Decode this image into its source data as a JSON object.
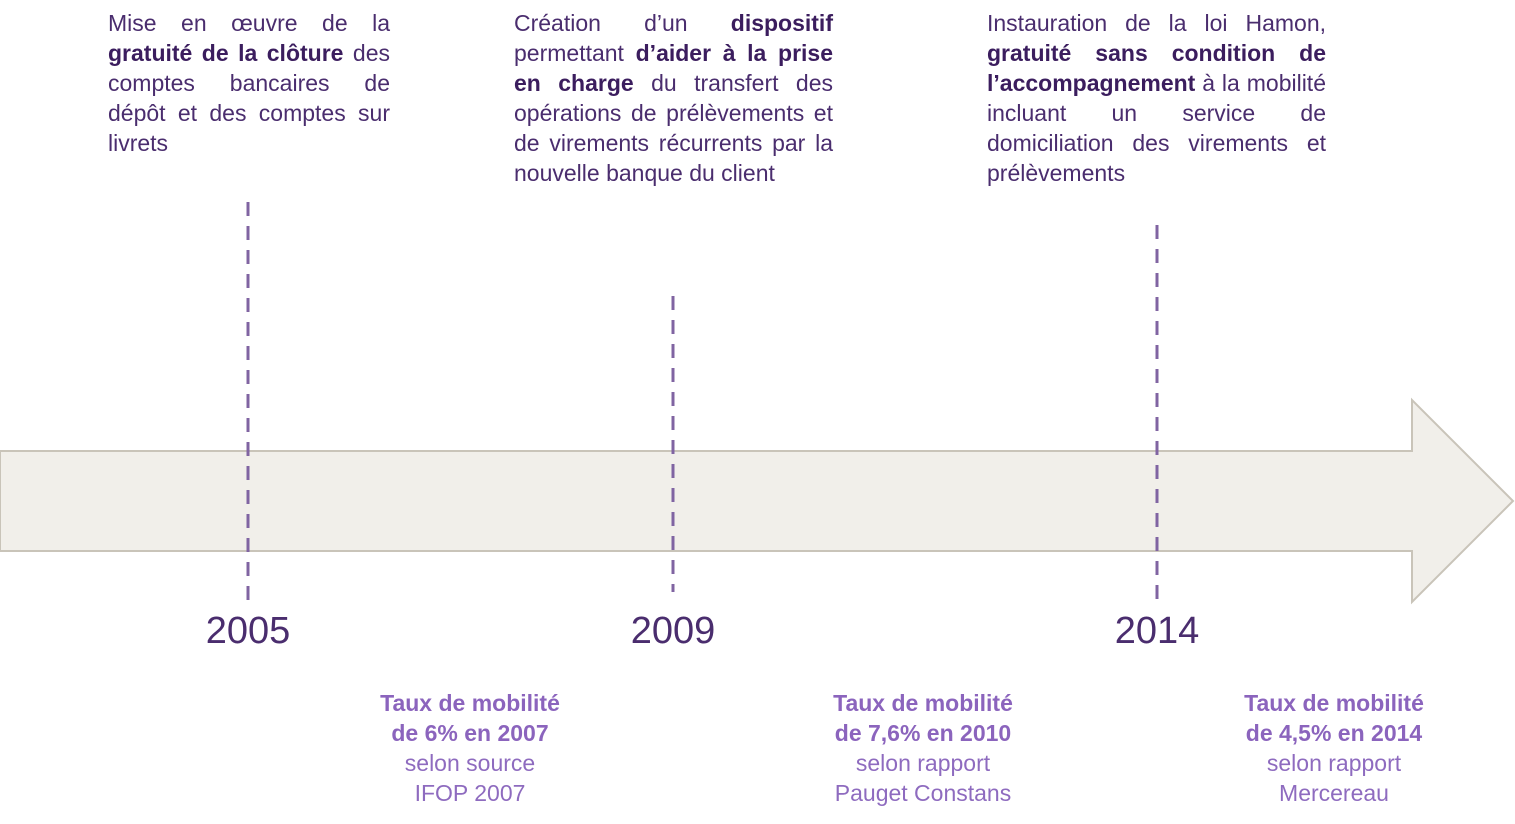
{
  "events": [
    {
      "year": "2005",
      "description": [
        {
          "text": "Mise en œuvre de la ",
          "bold": false
        },
        {
          "text": "gratuité de la clôture",
          "bold": true
        },
        {
          "text": " des comptes bancaires de dépôt et des comptes sur livrets",
          "bold": false
        }
      ]
    },
    {
      "year": "2009",
      "description": [
        {
          "text": "Création d’un ",
          "bold": false
        },
        {
          "text": "dispositif",
          "bold": true
        },
        {
          "text": " permettant ",
          "bold": false
        },
        {
          "text": "d’aider à la prise en charge",
          "bold": true
        },
        {
          "text": " du transfert des opérations de prélèvements et de virements récurrents par la nouvelle banque du client",
          "bold": false
        }
      ]
    },
    {
      "year": "2014",
      "description": [
        {
          "text": "Instauration de la loi Hamon, ",
          "bold": false
        },
        {
          "text": "gratuité sans condition de l’accompagnement",
          "bold": true
        },
        {
          "text": " à la mobilité incluant un service de domiciliation des virements et prélèvements",
          "bold": false
        }
      ]
    }
  ],
  "stats": [
    {
      "headline": [
        "Taux de mobilité",
        "de 6% en 2007"
      ],
      "source": [
        "selon source",
        "IFOP 2007"
      ]
    },
    {
      "headline": [
        "Taux de mobilité",
        "de 7,6% en 2010"
      ],
      "source": [
        "selon rapport",
        "Pauget Constans"
      ]
    },
    {
      "headline": [
        "Taux de mobilité",
        "de 4,5% en 2014"
      ],
      "source": [
        "selon rapport",
        "Mercereau"
      ]
    }
  ]
}
